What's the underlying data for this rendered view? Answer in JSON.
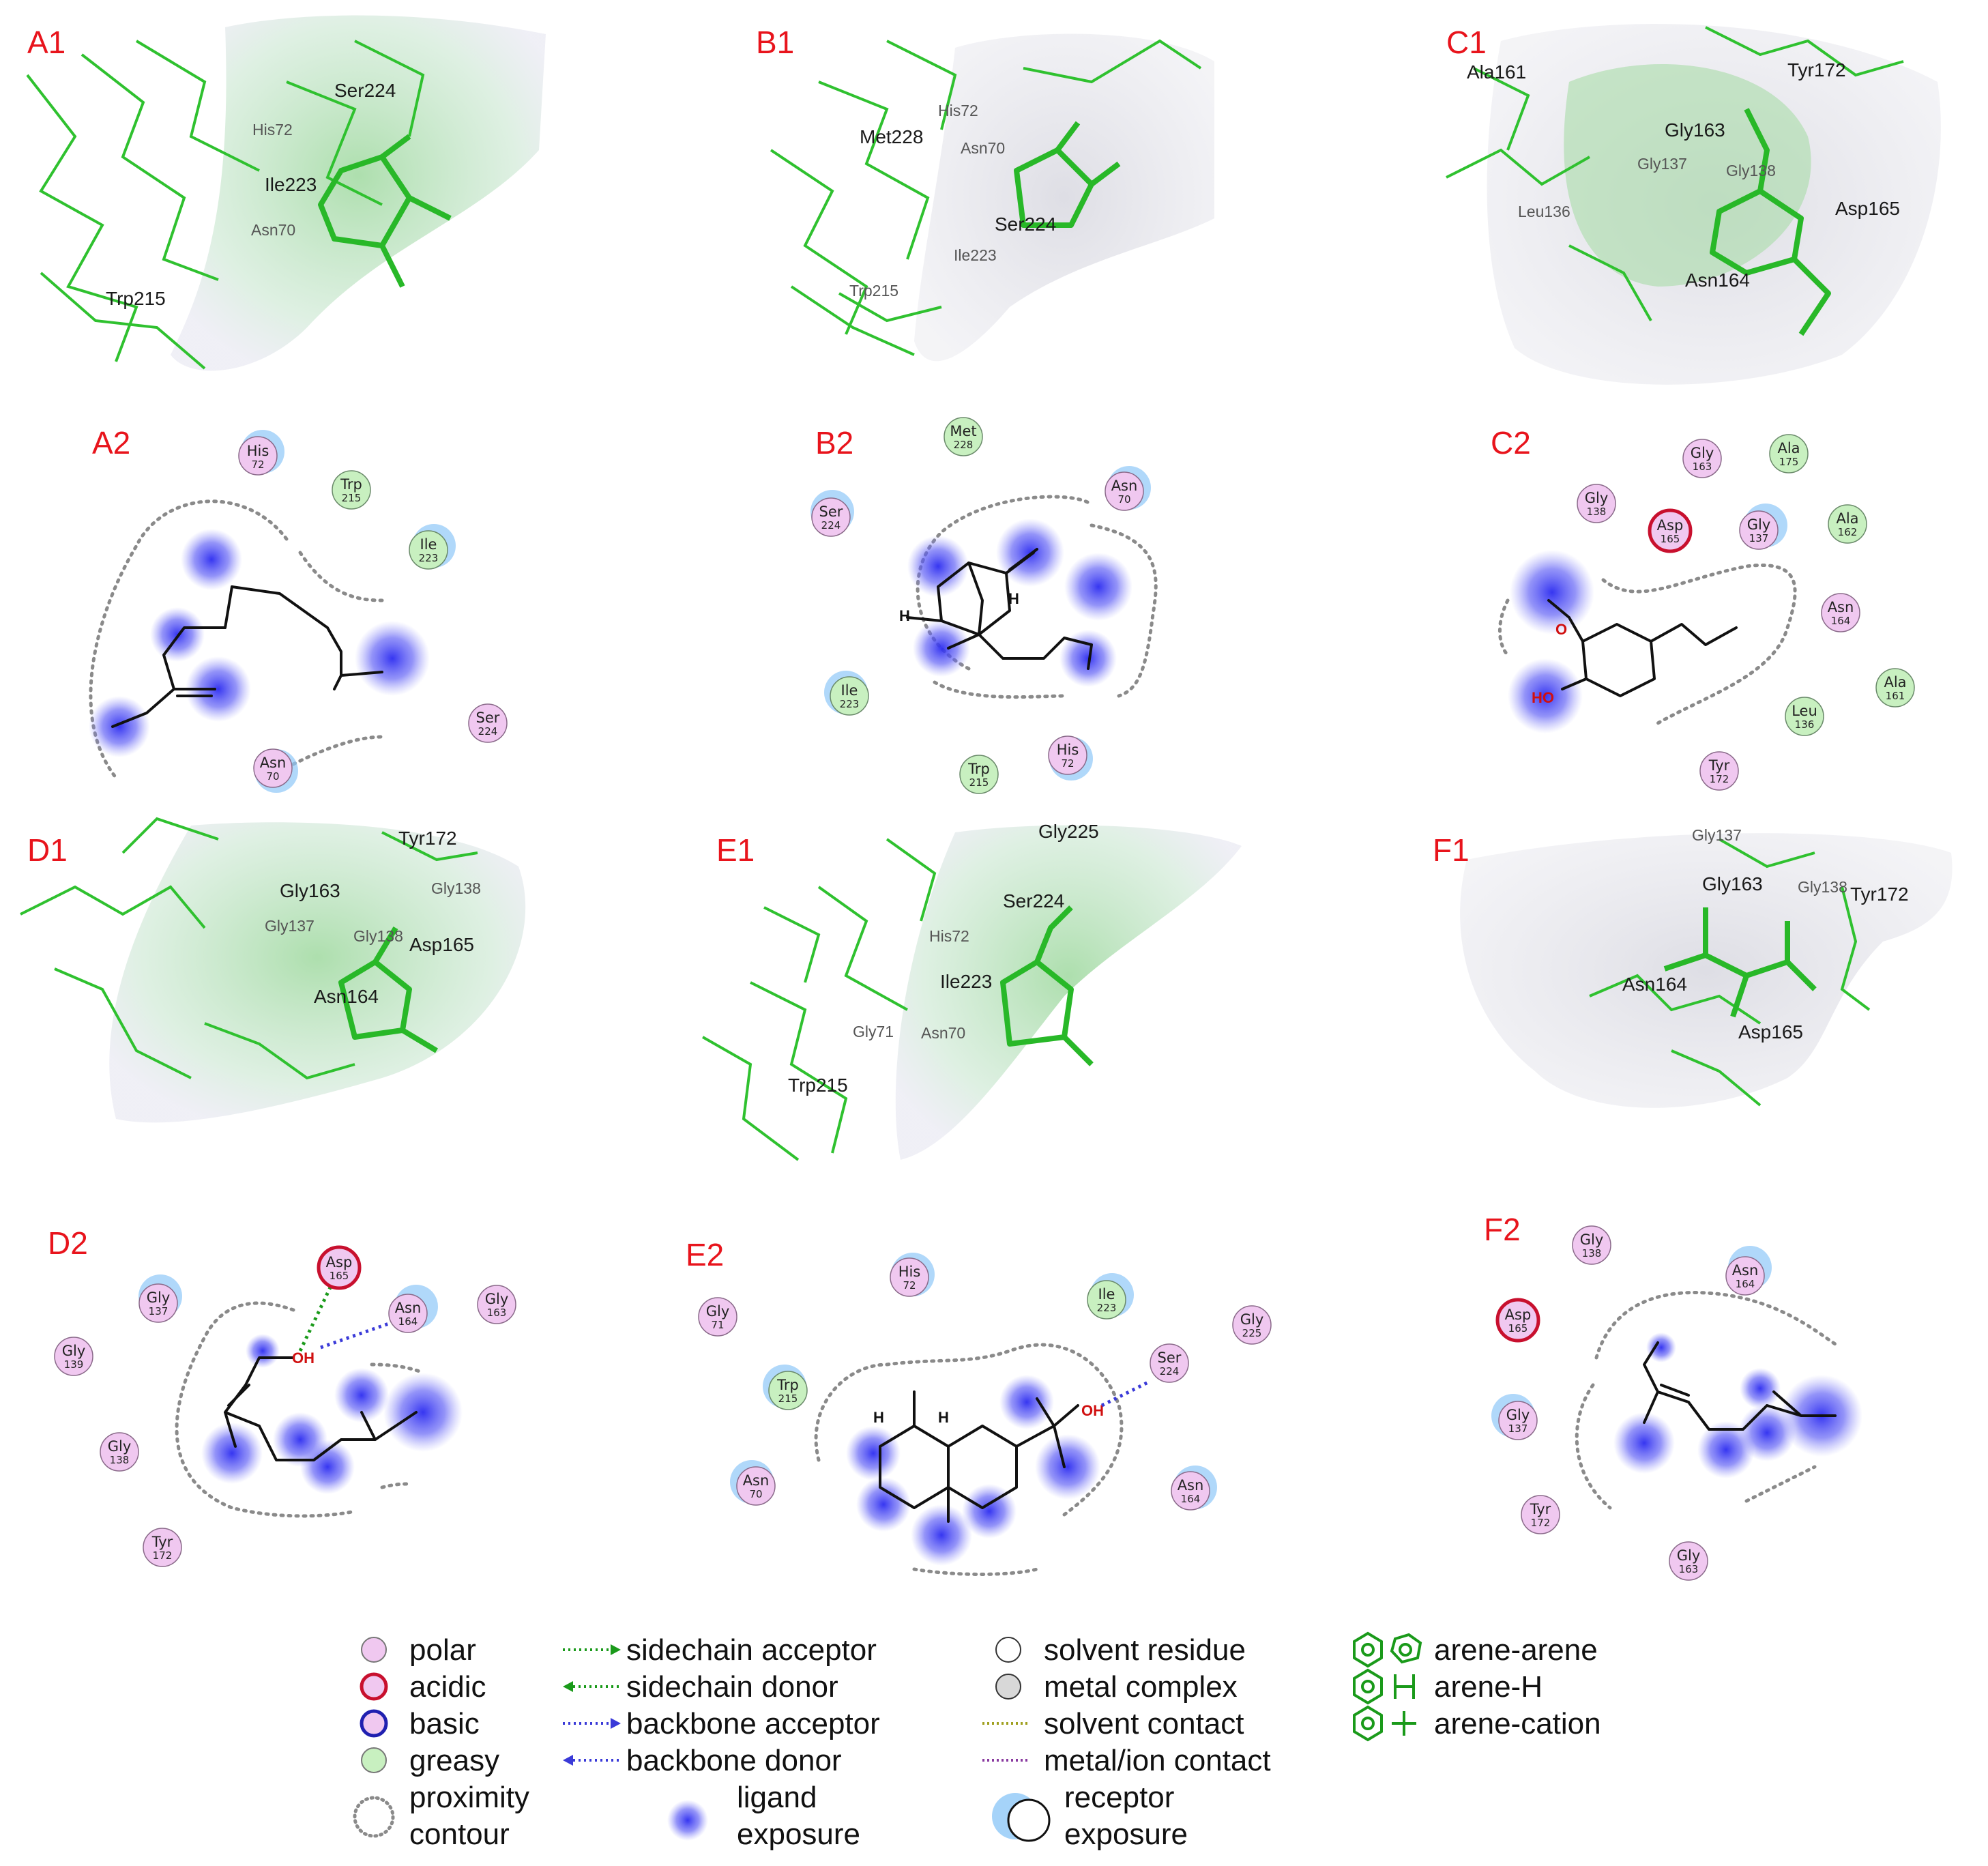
{
  "panels": {
    "A1": {
      "label": "A1",
      "residues": [
        "Ser224",
        "His72",
        "Ile223",
        "Asn70",
        "Trp215"
      ]
    },
    "B1": {
      "label": "B1",
      "residues": [
        "His72",
        "Met228",
        "Asn70",
        "Ser224",
        "Ile223",
        "Trp215"
      ]
    },
    "C1": {
      "label": "C1",
      "residues": [
        "Ala161",
        "Tyr172",
        "Gly163",
        "Gly137",
        "Gly138",
        "Leu136",
        "Asp165",
        "Asn164"
      ]
    },
    "D1": {
      "label": "D1",
      "residues": [
        "Tyr172",
        "Gly163",
        "Gly138",
        "Gly137",
        "Gly138",
        "Asp165",
        "Asn164"
      ]
    },
    "E1": {
      "label": "E1",
      "residues": [
        "Gly225",
        "Ser224",
        "His72",
        "Ile223",
        "Gly71",
        "Asn70",
        "Trp215"
      ]
    },
    "F1": {
      "label": "F1",
      "residues": [
        "Gly137",
        "Gly163",
        "Gly138",
        "Tyr172",
        "Asn164",
        "Asp165"
      ]
    },
    "A2": {
      "label": "A2",
      "residues": [
        {
          "name": "His",
          "num": "72",
          "type": "polar"
        },
        {
          "name": "Trp",
          "num": "215",
          "type": "greasy"
        },
        {
          "name": "Ile",
          "num": "223",
          "type": "greasy"
        },
        {
          "name": "Ser",
          "num": "224",
          "type": "polar"
        },
        {
          "name": "Asn",
          "num": "70",
          "type": "polar"
        }
      ]
    },
    "B2": {
      "label": "B2",
      "atoms": [
        "H",
        "H"
      ],
      "residues": [
        {
          "name": "Met",
          "num": "228",
          "type": "greasy"
        },
        {
          "name": "Ser",
          "num": "224",
          "type": "polar"
        },
        {
          "name": "Asn",
          "num": "70",
          "type": "polar"
        },
        {
          "name": "Ile",
          "num": "223",
          "type": "greasy"
        },
        {
          "name": "Trp",
          "num": "215",
          "type": "greasy"
        },
        {
          "name": "His",
          "num": "72",
          "type": "polar"
        }
      ]
    },
    "C2": {
      "label": "C2",
      "atoms": [
        "HO"
      ],
      "residues": [
        {
          "name": "Gly",
          "num": "163",
          "type": "polar"
        },
        {
          "name": "Ala",
          "num": "175",
          "type": "greasy"
        },
        {
          "name": "Gly",
          "num": "138",
          "type": "polar"
        },
        {
          "name": "Asp",
          "num": "165",
          "type": "acidic"
        },
        {
          "name": "Gly",
          "num": "137",
          "type": "polar"
        },
        {
          "name": "Ala",
          "num": "162",
          "type": "greasy"
        },
        {
          "name": "Asn",
          "num": "164",
          "type": "polar"
        },
        {
          "name": "Ala",
          "num": "161",
          "type": "greasy"
        },
        {
          "name": "Leu",
          "num": "136",
          "type": "greasy"
        },
        {
          "name": "Tyr",
          "num": "172",
          "type": "polar"
        }
      ]
    },
    "D2": {
      "label": "D2",
      "atoms": [
        "OH"
      ],
      "residues": [
        {
          "name": "Asp",
          "num": "165",
          "type": "acidic"
        },
        {
          "name": "Gly",
          "num": "137",
          "type": "polar"
        },
        {
          "name": "Asn",
          "num": "164",
          "type": "polar"
        },
        {
          "name": "Gly",
          "num": "163",
          "type": "polar"
        },
        {
          "name": "Gly",
          "num": "139",
          "type": "polar"
        },
        {
          "name": "Gly",
          "num": "138",
          "type": "polar"
        },
        {
          "name": "Tyr",
          "num": "172",
          "type": "polar"
        }
      ]
    },
    "E2": {
      "label": "E2",
      "atoms": [
        "OH",
        "H",
        "H"
      ],
      "residues": [
        {
          "name": "His",
          "num": "72",
          "type": "polar"
        },
        {
          "name": "Ile",
          "num": "223",
          "type": "greasy"
        },
        {
          "name": "Gly",
          "num": "71",
          "type": "polar"
        },
        {
          "name": "Gly",
          "num": "225",
          "type": "polar"
        },
        {
          "name": "Ser",
          "num": "224",
          "type": "polar"
        },
        {
          "name": "Trp",
          "num": "215",
          "type": "greasy"
        },
        {
          "name": "Asn",
          "num": "70",
          "type": "polar"
        },
        {
          "name": "Asn",
          "num": "164",
          "type": "polar"
        }
      ]
    },
    "F2": {
      "label": "F2",
      "residues": [
        {
          "name": "Gly",
          "num": "138",
          "type": "polar"
        },
        {
          "name": "Asn",
          "num": "164",
          "type": "polar"
        },
        {
          "name": "Asp",
          "num": "165",
          "type": "acidic"
        },
        {
          "name": "Gly",
          "num": "137",
          "type": "polar"
        },
        {
          "name": "Tyr",
          "num": "172",
          "type": "polar"
        },
        {
          "name": "Gly",
          "num": "163",
          "type": "polar"
        }
      ]
    }
  },
  "legend": {
    "col1": [
      "polar",
      "acidic",
      "basic",
      "greasy",
      "proximity",
      "contour"
    ],
    "col2": [
      "sidechain acceptor",
      "sidechain donor",
      "backbone acceptor",
      "backbone donor",
      "ligand",
      "exposure"
    ],
    "col3": [
      "solvent residue",
      "metal complex",
      "solvent contact",
      "metal/ion contact",
      "receptor",
      "exposure"
    ],
    "col4": [
      "arene-arene",
      "arene-H",
      "arene-cation"
    ]
  },
  "colors": {
    "label_red": "#e8141c",
    "polar": "#f0c8f0",
    "greasy": "#c8f0c0",
    "acidic_ring": "#c8102e",
    "exposure_blue": "#3d3df5",
    "hbond_green": "#1a9a1a",
    "hbond_blue": "#3a3ad8"
  }
}
